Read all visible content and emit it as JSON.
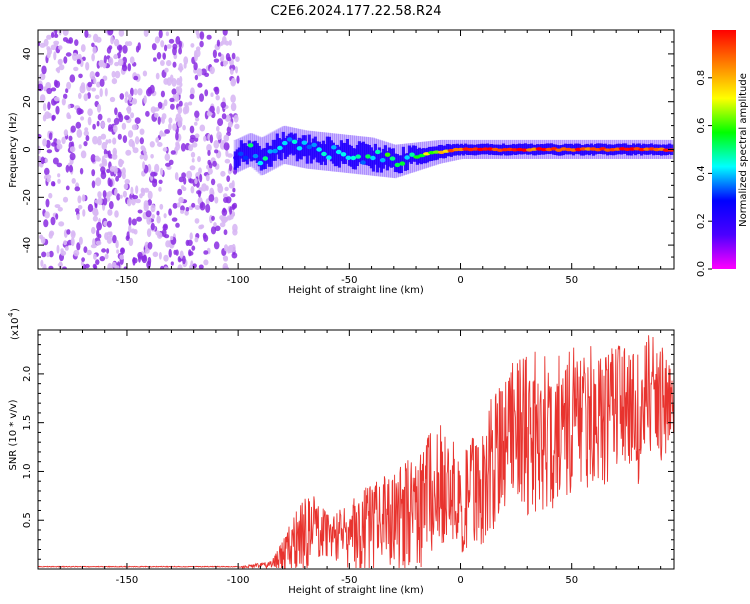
{
  "title": "C2E6.2024.177.22.58.R24",
  "colors": {
    "snr_line": "#e8332e",
    "noise_dot": "#8a2be2",
    "noise_dot_light": "#d8b8f4",
    "axis": "#000000",
    "colorbar_stops": [
      "#ff00ff",
      "#4b00ff",
      "#0000ff",
      "#00ffff",
      "#00ff00",
      "#ffff00",
      "#ff8000",
      "#ff0000"
    ]
  },
  "chart_data": [
    {
      "type": "heatmap",
      "name": "spectrogram",
      "title": "C2E6.2024.177.22.58.R24",
      "xlabel": "Height of straight line (km)",
      "ylabel": "Frequency (Hz)",
      "xlim": [
        -190,
        96
      ],
      "ylim": [
        -50,
        50
      ],
      "xticks": [
        -150,
        -100,
        -50,
        0,
        50
      ],
      "yticks": [
        -40,
        -20,
        0,
        20,
        40
      ],
      "colorbar": {
        "label": "Normalized spectral amplitude",
        "range": [
          0.0,
          1.0
        ],
        "ticks": [
          "0.0",
          "0.2",
          "0.4",
          "0.6",
          "0.8"
        ],
        "tick_values": [
          0.0,
          0.2,
          0.4,
          0.6,
          0.8
        ]
      },
      "noise_region_x": [
        -190,
        -100
      ],
      "signal_trace": {
        "x": [
          -102,
          -95,
          -90,
          -80,
          -70,
          -60,
          -50,
          -40,
          -30,
          -20,
          -10,
          0,
          10,
          20,
          30,
          40,
          50,
          60,
          70,
          80,
          90,
          95
        ],
        "y": [
          -3,
          0,
          -3,
          2,
          0,
          -1,
          -2,
          -3,
          -5,
          -3,
          -1,
          0,
          0,
          0,
          0,
          0,
          0,
          0,
          0,
          0,
          0,
          0
        ],
        "amplitude": [
          0.3,
          0.4,
          0.4,
          0.45,
          0.45,
          0.45,
          0.45,
          0.45,
          0.5,
          0.55,
          0.7,
          0.9,
          0.9,
          0.95,
          0.95,
          0.95,
          0.95,
          0.95,
          0.95,
          0.95,
          0.95,
          0.9
        ],
        "halfwidth_hz": [
          7,
          7,
          8,
          8,
          8,
          8,
          8,
          8,
          7,
          6,
          5,
          4,
          4,
          4,
          4,
          4,
          4,
          4,
          4,
          4,
          4,
          4
        ]
      }
    },
    {
      "type": "line",
      "name": "snr",
      "xlabel": "Height of straight line (km)",
      "ylabel": "SNR (10 * v/v)",
      "ylabel_multiplier": "(x10",
      "ylabel_exponent": "4",
      "xlim": [
        -190,
        96
      ],
      "ylim": [
        0,
        2.45
      ],
      "xticks": [
        -150,
        -100,
        -50,
        0,
        50
      ],
      "yticks": [
        0.5,
        1.0,
        1.5,
        2.0
      ],
      "ytick_labels": [
        "0.5",
        "1.0",
        "1.5",
        "2.0"
      ],
      "series": [
        {
          "x": [
            -190,
            -100,
            -85,
            -80,
            -75,
            -70,
            -65,
            -60,
            -55,
            -50,
            -45,
            -40,
            -35,
            -30,
            -25,
            -20,
            -15,
            -10,
            -5,
            0,
            5,
            10,
            15,
            20,
            25,
            30,
            35,
            40,
            45,
            50,
            55,
            60,
            65,
            70,
            75,
            80,
            85,
            90,
            96
          ],
          "y": [
            0.02,
            0.02,
            0.05,
            0.15,
            0.25,
            0.35,
            0.45,
            0.4,
            0.3,
            0.3,
            0.35,
            0.45,
            0.5,
            0.5,
            0.6,
            0.55,
            0.75,
            0.9,
            0.8,
            0.55,
            0.8,
            0.85,
            1.1,
            1.25,
            1.45,
            1.3,
            1.2,
            1.3,
            1.35,
            1.4,
            1.55,
            1.5,
            1.5,
            1.7,
            1.65,
            1.55,
            1.75,
            1.7,
            1.7
          ],
          "spread": [
            0.0,
            0.0,
            0.05,
            0.2,
            0.35,
            0.45,
            0.35,
            0.3,
            0.3,
            0.35,
            0.45,
            0.5,
            0.55,
            0.6,
            0.65,
            0.6,
            0.7,
            0.6,
            0.6,
            0.5,
            0.6,
            0.6,
            0.7,
            0.7,
            0.7,
            0.75,
            0.7,
            0.75,
            0.75,
            0.7,
            0.7,
            0.7,
            0.65,
            0.7,
            0.65,
            0.7,
            0.7,
            0.6,
            0.4
          ],
          "peak": [
            0.02,
            0.02,
            0.08,
            0.28,
            0.55,
            0.72,
            0.75,
            0.55,
            0.6,
            0.75,
            0.82,
            0.85,
            0.95,
            0.95,
            1.15,
            1.05,
            1.35,
            1.5,
            1.45,
            1.1,
            1.35,
            1.45,
            1.9,
            1.95,
            2.2,
            2.3,
            2.25,
            2.2,
            2.3,
            2.3,
            2.35,
            2.3,
            2.2,
            2.3,
            2.25,
            2.2,
            2.45,
            2.3,
            2.1
          ]
        }
      ]
    }
  ]
}
